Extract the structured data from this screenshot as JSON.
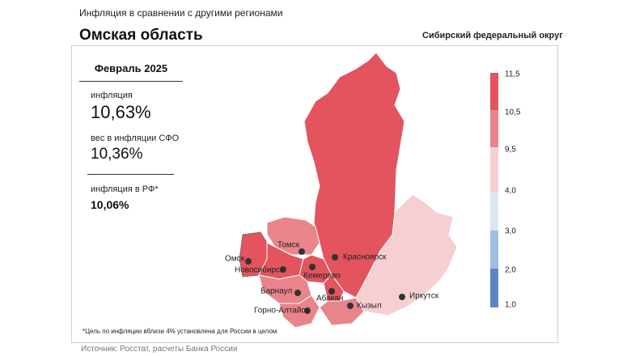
{
  "header": {
    "subtitle": "Инфляция  в сравнении  с другими  регионами",
    "title": "Омская область",
    "district": "Сибирский федеральный округ"
  },
  "panel": {
    "period": "Февраль 2025",
    "items": [
      {
        "label": "инфляция",
        "value": "10,63%"
      },
      {
        "label": "вес в инфляции  СФО",
        "value": "10,36%"
      },
      {
        "label": "инфляция  в РФ*",
        "value": "10,06%"
      }
    ]
  },
  "legend": {
    "labels": [
      "11,5",
      "10,5",
      "9,5",
      "4,0",
      "3,0",
      "2,0",
      "1,0"
    ]
  },
  "map": {
    "cities": [
      "Омск",
      "Томск",
      "Новосибирск",
      "Красноярск",
      "Кемерово",
      "Барнаул",
      "Абакан",
      "Горно-Алтайск",
      "Кызыл",
      "Иркутск"
    ]
  },
  "footnote": "*Цель по инфляции вблизи 4% установлена для России в целом",
  "source": "Источник: Росстат, расчеты Банка России"
}
